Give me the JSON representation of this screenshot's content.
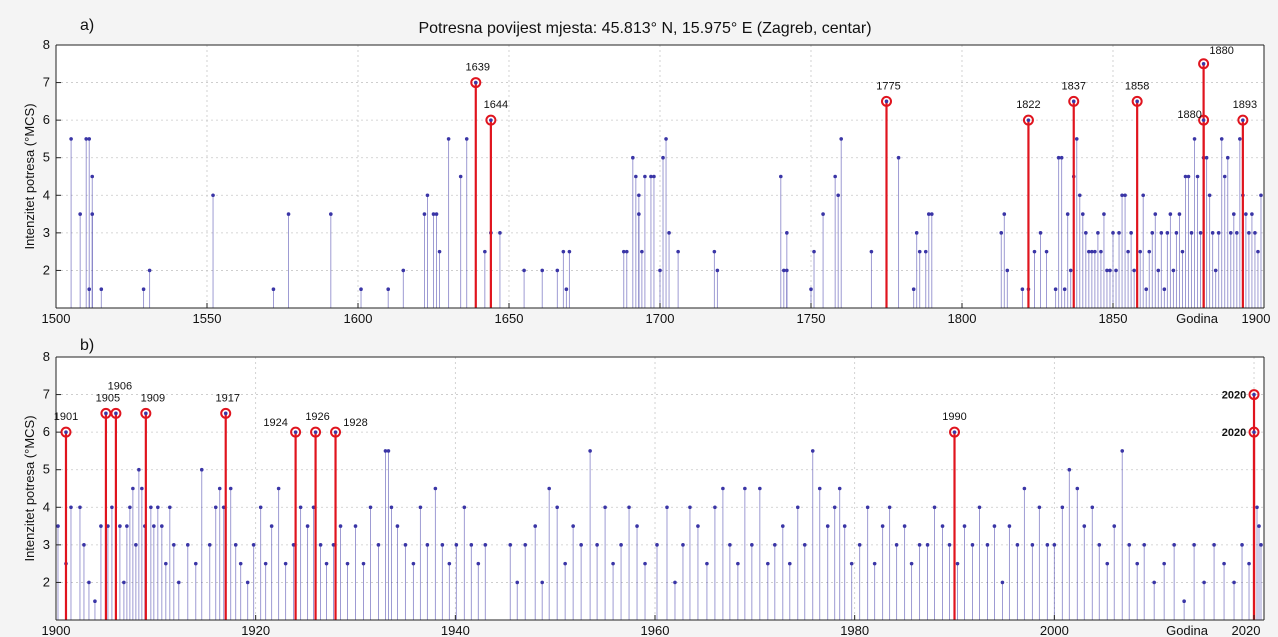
{
  "chart_data": [
    {
      "type": "stem",
      "panel": "a)",
      "title": "Potresna povijest mjesta: 45.813° N, 15.975° E (Zagreb, centar)",
      "xlabel": "Godina",
      "ylabel": "Intenzitet potresa (°MCS)",
      "xlim": [
        1500,
        1900
      ],
      "ylim": [
        1,
        8
      ],
      "xticks": [
        "1500",
        "1550",
        "1600",
        "1650",
        "1700",
        "1750",
        "1800",
        "1850",
        "1900"
      ],
      "yticks": [
        "2",
        "3",
        "4",
        "5",
        "6",
        "7",
        "8"
      ],
      "grid": true,
      "colors": {
        "events": "#3a35a6",
        "major": "#e0141e"
      },
      "events": [
        [
          1505,
          5.5
        ],
        [
          1508,
          3.5
        ],
        [
          1510,
          5.5
        ],
        [
          1511,
          5.5
        ],
        [
          1511,
          1.5
        ],
        [
          1512,
          4.5
        ],
        [
          1512,
          3.5
        ],
        [
          1515,
          1.5
        ],
        [
          1529,
          1.5
        ],
        [
          1531,
          2
        ],
        [
          1552,
          4
        ],
        [
          1572,
          1.5
        ],
        [
          1577,
          3.5
        ],
        [
          1591,
          3.5
        ],
        [
          1601,
          1.5
        ],
        [
          1610,
          1.5
        ],
        [
          1615,
          2
        ],
        [
          1622,
          3.5
        ],
        [
          1623,
          4
        ],
        [
          1625,
          3.5
        ],
        [
          1626,
          3.5
        ],
        [
          1627,
          2.5
        ],
        [
          1630,
          5.5
        ],
        [
          1634,
          4.5
        ],
        [
          1636,
          5.5
        ],
        [
          1642,
          2.5
        ],
        [
          1644,
          3
        ],
        [
          1647,
          3
        ],
        [
          1655,
          2
        ],
        [
          1661,
          2
        ],
        [
          1666,
          2
        ],
        [
          1668,
          2.5
        ],
        [
          1669,
          1.5
        ],
        [
          1670,
          2.5
        ],
        [
          1688,
          2.5
        ],
        [
          1689,
          2.5
        ],
        [
          1691,
          5
        ],
        [
          1692,
          4.5
        ],
        [
          1693,
          4
        ],
        [
          1693,
          3.5
        ],
        [
          1694,
          2.5
        ],
        [
          1695,
          4.5
        ],
        [
          1697,
          4.5
        ],
        [
          1698,
          4.5
        ],
        [
          1700,
          2
        ],
        [
          1701,
          5
        ],
        [
          1702,
          5.5
        ],
        [
          1703,
          3
        ],
        [
          1706,
          2.5
        ],
        [
          1718,
          2.5
        ],
        [
          1719,
          2
        ],
        [
          1740,
          4.5
        ],
        [
          1741,
          2
        ],
        [
          1742,
          3
        ],
        [
          1742,
          2
        ],
        [
          1750,
          1.5
        ],
        [
          1751,
          2.5
        ],
        [
          1754,
          3.5
        ],
        [
          1758,
          4.5
        ],
        [
          1759,
          4
        ],
        [
          1760,
          5.5
        ],
        [
          1770,
          2.5
        ],
        [
          1779,
          5
        ],
        [
          1784,
          1.5
        ],
        [
          1785,
          3
        ],
        [
          1786,
          2.5
        ],
        [
          1788,
          2.5
        ],
        [
          1789,
          3.5
        ],
        [
          1790,
          3.5
        ],
        [
          1813,
          3
        ],
        [
          1814,
          3.5
        ],
        [
          1815,
          2
        ],
        [
          1820,
          1.5
        ],
        [
          1822,
          1.5
        ],
        [
          1824,
          2.5
        ],
        [
          1826,
          3
        ],
        [
          1828,
          2.5
        ],
        [
          1831,
          1.5
        ],
        [
          1832,
          5
        ],
        [
          1833,
          5
        ],
        [
          1834,
          1.5
        ],
        [
          1835,
          3.5
        ],
        [
          1836,
          2
        ],
        [
          1837,
          4.5
        ],
        [
          1838,
          5.5
        ],
        [
          1839,
          4
        ],
        [
          1840,
          3.5
        ],
        [
          1841,
          3
        ],
        [
          1842,
          2.5
        ],
        [
          1843,
          2.5
        ],
        [
          1844,
          2.5
        ],
        [
          1845,
          3
        ],
        [
          1846,
          2.5
        ],
        [
          1847,
          3.5
        ],
        [
          1848,
          2
        ],
        [
          1849,
          2
        ],
        [
          1850,
          3
        ],
        [
          1851,
          2
        ],
        [
          1852,
          3
        ],
        [
          1853,
          4
        ],
        [
          1854,
          4
        ],
        [
          1855,
          2.5
        ],
        [
          1856,
          3
        ],
        [
          1857,
          2
        ],
        [
          1859,
          2.5
        ],
        [
          1860,
          4
        ],
        [
          1861,
          1.5
        ],
        [
          1862,
          2.5
        ],
        [
          1863,
          3
        ],
        [
          1864,
          3.5
        ],
        [
          1865,
          2
        ],
        [
          1866,
          3
        ],
        [
          1867,
          1.5
        ],
        [
          1868,
          3
        ],
        [
          1869,
          3.5
        ],
        [
          1870,
          2
        ],
        [
          1871,
          3
        ],
        [
          1872,
          3.5
        ],
        [
          1873,
          2.5
        ],
        [
          1874,
          4.5
        ],
        [
          1875,
          4.5
        ],
        [
          1876,
          3
        ],
        [
          1877,
          5.5
        ],
        [
          1878,
          4.5
        ],
        [
          1879,
          3
        ],
        [
          1880,
          5
        ],
        [
          1881,
          5
        ],
        [
          1882,
          4
        ],
        [
          1883,
          3
        ],
        [
          1884,
          2
        ],
        [
          1885,
          3
        ],
        [
          1886,
          5.5
        ],
        [
          1887,
          4.5
        ],
        [
          1888,
          5
        ],
        [
          1889,
          3
        ],
        [
          1890,
          3.5
        ],
        [
          1891,
          3
        ],
        [
          1892,
          5.5
        ],
        [
          1893,
          4
        ],
        [
          1894,
          3.5
        ],
        [
          1895,
          3
        ],
        [
          1896,
          3.5
        ],
        [
          1897,
          3
        ],
        [
          1898,
          2.5
        ],
        [
          1899,
          4
        ]
      ],
      "major_events": [
        {
          "year": 1639,
          "value": 7,
          "label": "1639"
        },
        {
          "year": 1644,
          "value": 6,
          "label": "1644"
        },
        {
          "year": 1775,
          "value": 6.5,
          "label": "1775"
        },
        {
          "year": 1822,
          "value": 6,
          "label": "1822"
        },
        {
          "year": 1837,
          "value": 6.5,
          "label": "1837"
        },
        {
          "year": 1858,
          "value": 6.5,
          "label": "1858"
        },
        {
          "year": 1880,
          "value": 7.5,
          "label": "1880"
        },
        {
          "year": 1880,
          "value": 6,
          "label": "1880"
        },
        {
          "year": 1893,
          "value": 6,
          "label": "1893"
        }
      ]
    },
    {
      "type": "stem",
      "panel": "b)",
      "xlabel": "Godina",
      "ylabel": "Intenzitet potresa (°MCS)",
      "xlim": [
        1900,
        2021
      ],
      "ylim": [
        1,
        8
      ],
      "xticks": [
        "1900",
        "1920",
        "1940",
        "1960",
        "1980",
        "2000",
        "2020"
      ],
      "yticks": [
        "2",
        "3",
        "4",
        "5",
        "6",
        "7",
        "8"
      ],
      "grid": true,
      "colors": {
        "events": "#3a35a6",
        "major": "#e0141e"
      },
      "events": [
        [
          1900.2,
          3.5
        ],
        [
          1901.0,
          2.5
        ],
        [
          1901.5,
          4
        ],
        [
          1902.4,
          4
        ],
        [
          1902.8,
          3
        ],
        [
          1903.3,
          2
        ],
        [
          1903.9,
          1.5
        ],
        [
          1904.5,
          3.5
        ],
        [
          1905.2,
          3.5
        ],
        [
          1905.6,
          4
        ],
        [
          1906.4,
          3.5
        ],
        [
          1906.8,
          2
        ],
        [
          1907.1,
          3.5
        ],
        [
          1907.4,
          4
        ],
        [
          1907.7,
          4.5
        ],
        [
          1908.0,
          3
        ],
        [
          1908.3,
          5
        ],
        [
          1908.6,
          4.5
        ],
        [
          1908.9,
          3.5
        ],
        [
          1909.5,
          4
        ],
        [
          1909.8,
          3.5
        ],
        [
          1910.2,
          4
        ],
        [
          1910.6,
          3.5
        ],
        [
          1911.0,
          2.5
        ],
        [
          1911.4,
          4
        ],
        [
          1911.8,
          3
        ],
        [
          1912.3,
          2
        ],
        [
          1913.2,
          3
        ],
        [
          1914.0,
          2.5
        ],
        [
          1914.6,
          5
        ],
        [
          1915.4,
          3
        ],
        [
          1916.0,
          4
        ],
        [
          1916.4,
          4.5
        ],
        [
          1916.8,
          4
        ],
        [
          1917.5,
          4.5
        ],
        [
          1918.0,
          3
        ],
        [
          1918.5,
          2.5
        ],
        [
          1919.2,
          2
        ],
        [
          1919.8,
          3
        ],
        [
          1920.5,
          4
        ],
        [
          1921.0,
          2.5
        ],
        [
          1921.6,
          3.5
        ],
        [
          1922.3,
          4.5
        ],
        [
          1923.0,
          2.5
        ],
        [
          1923.8,
          3
        ],
        [
          1924.5,
          4
        ],
        [
          1925.2,
          3.5
        ],
        [
          1925.8,
          4
        ],
        [
          1926.5,
          3
        ],
        [
          1927.1,
          2.5
        ],
        [
          1927.8,
          3
        ],
        [
          1928.5,
          3.5
        ],
        [
          1929.2,
          2.5
        ],
        [
          1930.0,
          3.5
        ],
        [
          1930.8,
          2.5
        ],
        [
          1931.5,
          4
        ],
        [
          1932.3,
          3
        ],
        [
          1933.0,
          5.5
        ],
        [
          1933.3,
          5.5
        ],
        [
          1933.6,
          4
        ],
        [
          1934.2,
          3.5
        ],
        [
          1935.0,
          3
        ],
        [
          1935.8,
          2.5
        ],
        [
          1936.5,
          4
        ],
        [
          1937.2,
          3
        ],
        [
          1938.0,
          4.5
        ],
        [
          1938.7,
          3
        ],
        [
          1939.4,
          2.5
        ],
        [
          1940.1,
          3
        ],
        [
          1940.9,
          4
        ],
        [
          1941.6,
          3
        ],
        [
          1942.3,
          2.5
        ],
        [
          1943.0,
          3
        ],
        [
          1945.5,
          3
        ],
        [
          1946.2,
          2
        ],
        [
          1947.0,
          3
        ],
        [
          1948.0,
          3.5
        ],
        [
          1948.7,
          2
        ],
        [
          1949.4,
          4.5
        ],
        [
          1950.2,
          4
        ],
        [
          1951.0,
          2.5
        ],
        [
          1951.8,
          3.5
        ],
        [
          1952.6,
          3
        ],
        [
          1953.5,
          5.5
        ],
        [
          1954.2,
          3
        ],
        [
          1955.0,
          4
        ],
        [
          1955.8,
          2.5
        ],
        [
          1956.6,
          3
        ],
        [
          1957.4,
          4
        ],
        [
          1958.2,
          3.5
        ],
        [
          1959.0,
          2.5
        ],
        [
          1960.2,
          3
        ],
        [
          1961.2,
          4
        ],
        [
          1962.0,
          2
        ],
        [
          1962.8,
          3
        ],
        [
          1963.5,
          4
        ],
        [
          1964.3,
          3.5
        ],
        [
          1965.2,
          2.5
        ],
        [
          1966.0,
          4
        ],
        [
          1966.8,
          4.5
        ],
        [
          1967.5,
          3
        ],
        [
          1968.3,
          2.5
        ],
        [
          1969.0,
          4.5
        ],
        [
          1969.7,
          3
        ],
        [
          1970.5,
          4.5
        ],
        [
          1971.3,
          2.5
        ],
        [
          1972.0,
          3
        ],
        [
          1972.8,
          3.5
        ],
        [
          1973.5,
          2.5
        ],
        [
          1974.3,
          4
        ],
        [
          1975.0,
          3
        ],
        [
          1975.8,
          5.5
        ],
        [
          1976.5,
          4.5
        ],
        [
          1977.3,
          3.5
        ],
        [
          1978.0,
          4
        ],
        [
          1978.5,
          4.5
        ],
        [
          1979.0,
          3.5
        ],
        [
          1979.7,
          2.5
        ],
        [
          1980.5,
          3
        ],
        [
          1981.3,
          4
        ],
        [
          1982.0,
          2.5
        ],
        [
          1982.8,
          3.5
        ],
        [
          1983.5,
          4
        ],
        [
          1984.2,
          3
        ],
        [
          1985.0,
          3.5
        ],
        [
          1985.7,
          2.5
        ],
        [
          1986.5,
          3
        ],
        [
          1987.3,
          3
        ],
        [
          1988.0,
          4
        ],
        [
          1988.8,
          3.5
        ],
        [
          1989.5,
          3
        ],
        [
          1990.3,
          2.5
        ],
        [
          1991.0,
          3.5
        ],
        [
          1991.8,
          3
        ],
        [
          1992.5,
          4
        ],
        [
          1993.3,
          3
        ],
        [
          1994.0,
          3.5
        ],
        [
          1994.8,
          2
        ],
        [
          1995.5,
          3.5
        ],
        [
          1996.3,
          3
        ],
        [
          1997.0,
          4.5
        ],
        [
          1997.8,
          3
        ],
        [
          1998.5,
          4
        ],
        [
          1999.3,
          3
        ],
        [
          2000.0,
          3
        ],
        [
          2000.8,
          4
        ],
        [
          2001.5,
          5
        ],
        [
          2002.3,
          4.5
        ],
        [
          2003.0,
          3.5
        ],
        [
          2003.8,
          4
        ],
        [
          2004.5,
          3
        ],
        [
          2005.3,
          2.5
        ],
        [
          2006.0,
          3.5
        ],
        [
          2006.8,
          5.5
        ],
        [
          2007.5,
          3
        ],
        [
          2008.3,
          2.5
        ],
        [
          2009.0,
          3
        ],
        [
          2010.0,
          2
        ],
        [
          2011.0,
          2.5
        ],
        [
          2012.0,
          3
        ],
        [
          2013.0,
          1.5
        ],
        [
          2014.0,
          3
        ],
        [
          2015.0,
          2
        ],
        [
          2016.0,
          3
        ],
        [
          2017.0,
          2.5
        ],
        [
          2018.0,
          2
        ],
        [
          2018.8,
          3
        ],
        [
          2019.5,
          2.5
        ],
        [
          2020.3,
          4
        ],
        [
          2020.5,
          3.5
        ],
        [
          2020.7,
          3
        ]
      ],
      "major_events": [
        {
          "year": 1901,
          "value": 6,
          "label": "1901"
        },
        {
          "year": 1905,
          "value": 6.5,
          "label": "1905"
        },
        {
          "year": 1906,
          "value": 6.5,
          "label": "1906"
        },
        {
          "year": 1909,
          "value": 6.5,
          "label": "1909"
        },
        {
          "year": 1917,
          "value": 6.5,
          "label": "1917"
        },
        {
          "year": 1924,
          "value": 6,
          "label": "1924"
        },
        {
          "year": 1926,
          "value": 6,
          "label": "1926"
        },
        {
          "year": 1928,
          "value": 6,
          "label": "1928"
        },
        {
          "year": 1990,
          "value": 6,
          "label": "1990"
        },
        {
          "year": 2020,
          "value": 7,
          "label": "2020"
        },
        {
          "year": 2020,
          "value": 6,
          "label": "2020"
        }
      ]
    }
  ]
}
